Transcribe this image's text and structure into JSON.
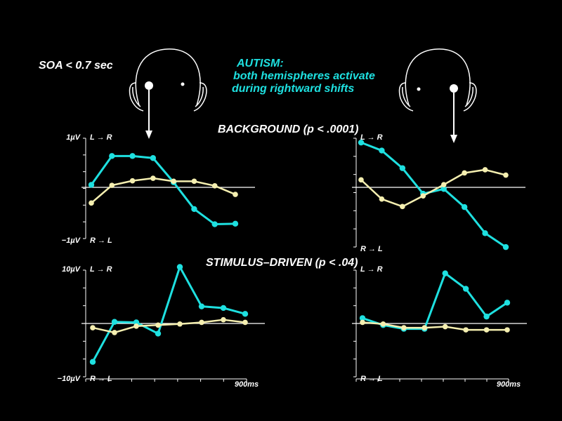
{
  "soa_label": "SOA < 0.7 sec",
  "autism_note": {
    "lines": [
      "AUTISM:",
      "both hemispheres activate",
      "during rightward shifts"
    ],
    "color": "#1ee0e0"
  },
  "colors": {
    "autism": "#1ee0e0",
    "control": "#f5efb0",
    "axis": "#ffffff"
  },
  "icons": [
    "head-left-attention-icon",
    "head-right-attention-icon"
  ],
  "chart_data": [
    {
      "type": "line",
      "title": "BACKGROUND (p < .0001)",
      "panel": "left-top",
      "y_top_label": "1µV",
      "y_bottom_label": "−1µV",
      "dir_top": "L → R",
      "dir_bottom": "R → L",
      "ylim": [
        -1,
        1
      ],
      "x": [
        1,
        2,
        3,
        4,
        5,
        6,
        7,
        8
      ],
      "series": [
        {
          "color": "autism",
          "values": [
            0.05,
            0.62,
            0.62,
            0.58,
            0.1,
            -0.43,
            -0.73,
            -0.72
          ]
        },
        {
          "color": "control",
          "values": [
            -0.31,
            0.04,
            0.13,
            0.18,
            0.12,
            0.12,
            0.03,
            -0.14
          ]
        }
      ]
    },
    {
      "type": "line",
      "title": "",
      "panel": "right-top",
      "dir_top": "L → R",
      "dir_bottom": "R → L",
      "ylim": [
        -1,
        1
      ],
      "x": [
        1,
        2,
        3,
        4,
        5,
        6,
        7,
        8
      ],
      "series": [
        {
          "color": "autism",
          "values": [
            0.84,
            0.69,
            0.36,
            -0.12,
            -0.03,
            -0.37,
            -0.86,
            -1.12
          ]
        },
        {
          "color": "control",
          "values": [
            0.14,
            -0.22,
            -0.36,
            -0.16,
            0.05,
            0.27,
            0.33,
            0.23
          ]
        }
      ]
    },
    {
      "type": "line",
      "title": "STIMULUS–DRIVEN (p < .04)",
      "panel": "left-bottom",
      "y_top_label": "10µV",
      "y_bottom_label": "−10µV",
      "dir_top": "L → R",
      "dir_bottom": "R → L",
      "x_end_label": "900ms",
      "ylim": [
        -10,
        10
      ],
      "x": [
        1,
        2,
        3,
        4,
        5,
        6,
        7,
        8
      ],
      "series": [
        {
          "color": "autism",
          "values": [
            -7.2,
            0.3,
            0.2,
            -1.9,
            10.6,
            3.2,
            2.9,
            1.8
          ]
        },
        {
          "color": "control",
          "values": [
            -0.8,
            -1.7,
            -0.5,
            -0.3,
            -0.1,
            0.2,
            0.7,
            0.2
          ]
        }
      ]
    },
    {
      "type": "line",
      "title": "",
      "panel": "right-bottom",
      "dir_top": "L → R",
      "dir_bottom": "R → L",
      "x_end_label": "900ms",
      "ylim": [
        -10,
        10
      ],
      "x": [
        1,
        2,
        3,
        4,
        5,
        6,
        7,
        8
      ],
      "series": [
        {
          "color": "autism",
          "values": [
            1.0,
            -0.3,
            -1.0,
            -1.0,
            9.4,
            6.5,
            1.3,
            3.9
          ]
        },
        {
          "color": "control",
          "values": [
            0.2,
            -0.1,
            -0.8,
            -0.8,
            -0.6,
            -1.2,
            -1.2,
            -1.2
          ]
        }
      ]
    }
  ]
}
